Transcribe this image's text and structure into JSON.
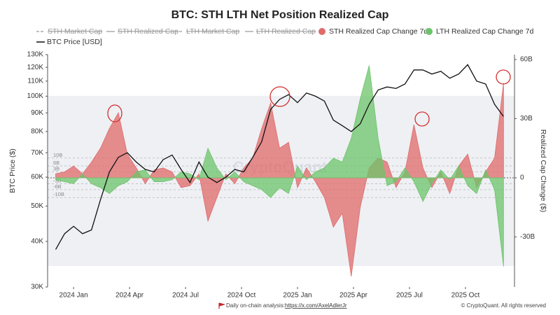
{
  "chart_data": {
    "type": "line",
    "title": "BTC: STH LTH Net Position Realized Cap",
    "y_label": "BTC Price ($)",
    "y2_label": "Realized Cap Change ($)",
    "inactive_legend": [
      "STH Market Cap",
      "STH Realized Cap",
      "LTH Market Cap",
      "LTH Realized Cap"
    ],
    "x": [
      2023.92,
      2023.96,
      2024.0,
      2024.04,
      2024.08,
      2024.12,
      2024.16,
      2024.2,
      2024.24,
      2024.28,
      2024.32,
      2024.36,
      2024.4,
      2024.44,
      2024.48,
      2024.52,
      2024.56,
      2024.6,
      2024.64,
      2024.68,
      2024.72,
      2024.76,
      2024.8,
      2024.84,
      2024.88,
      2024.92,
      2024.96,
      2025.0,
      2025.04,
      2025.08,
      2025.12,
      2025.16,
      2025.2,
      2025.24,
      2025.28,
      2025.32,
      2025.36,
      2025.4,
      2025.44,
      2025.48,
      2025.52,
      2025.56,
      2025.6,
      2025.64,
      2025.68,
      2025.72,
      2025.76,
      2025.8,
      2025.84,
      2025.88,
      2025.92
    ],
    "xlim": [
      2023.884,
      2025.969
    ],
    "xticks": [
      {
        "value": 2024.0,
        "label": "2024 Jan"
      },
      {
        "value": 2024.25,
        "label": "2024 Apr"
      },
      {
        "value": 2024.5,
        "label": "2024 Jul"
      },
      {
        "value": 2024.75,
        "label": "2024 Oct"
      },
      {
        "value": 2025.0,
        "label": "2025 Jan"
      },
      {
        "value": 2025.25,
        "label": "2025 Apr"
      },
      {
        "value": 2025.5,
        "label": "2025 Jul"
      },
      {
        "value": 2025.75,
        "label": "2025 Oct"
      }
    ],
    "ylog": true,
    "ylim": [
      30000,
      130000
    ],
    "yticks": [
      {
        "value": 30000,
        "label": "30K"
      },
      {
        "value": 40000,
        "label": "40K"
      },
      {
        "value": 50000,
        "label": "50K"
      },
      {
        "value": 60000,
        "label": "60K"
      },
      {
        "value": 70000,
        "label": "70K"
      },
      {
        "value": 80000,
        "label": "80K"
      },
      {
        "value": 90000,
        "label": "90K"
      },
      {
        "value": 100000,
        "label": "100K"
      },
      {
        "value": 110000,
        "label": "110K"
      },
      {
        "value": 120000,
        "label": "120K"
      },
      {
        "value": 130000,
        "label": "130K"
      }
    ],
    "y2lim": [
      -55.4,
      62.5
    ],
    "y2ticks": [
      {
        "value": 60,
        "label": "60B"
      },
      {
        "value": 30,
        "label": "30B"
      },
      0,
      {
        "value": -30,
        "label": "-30B"
      }
    ],
    "y2_reference_lines": [
      {
        "value": 10,
        "label": "10B"
      },
      {
        "value": 6,
        "label": "6B"
      },
      {
        "value": 3,
        "label": "3B"
      },
      {
        "value": -3,
        "label": "-3B"
      },
      {
        "value": -6,
        "label": "-6B"
      },
      {
        "value": -10,
        "label": "-10B"
      }
    ],
    "series": [
      {
        "name": "STH Realized Cap Change 7d",
        "type": "area",
        "axis": "y2",
        "color": "#e06a6a",
        "values": [
          2,
          3,
          6,
          2,
          8,
          15,
          25,
          33,
          12,
          5,
          -3,
          4,
          5,
          3,
          -5,
          -4,
          2,
          -22,
          -10,
          2,
          -3,
          5,
          10,
          25,
          38,
          15,
          18,
          -5,
          5,
          -2,
          -10,
          -25,
          -18,
          -50,
          -15,
          5,
          10,
          8,
          -5,
          3,
          27,
          5,
          -5,
          3,
          -8,
          6,
          12,
          -5,
          3,
          10,
          48
        ]
      },
      {
        "name": "LTH Realized Cap Change 7d",
        "type": "area",
        "axis": "y2",
        "color": "#6cc46a",
        "values": [
          -1,
          -2,
          -3,
          2,
          -3,
          -5,
          -8,
          -4,
          -2,
          3,
          4,
          -2,
          -2,
          -1,
          3,
          2,
          -1,
          15,
          5,
          -1,
          3,
          -2,
          -4,
          -6,
          -10,
          -5,
          -8,
          6,
          -1,
          3,
          5,
          10,
          8,
          20,
          40,
          57,
          20,
          -4,
          -2,
          5,
          -2,
          -12,
          -3,
          4,
          -1,
          6,
          -4,
          -8,
          4,
          -6,
          -45
        ]
      },
      {
        "name": "BTC Price [USD]",
        "type": "line",
        "color": "#111111",
        "values": [
          38000,
          42000,
          44000,
          42000,
          43000,
          52000,
          62000,
          68000,
          70000,
          66000,
          63000,
          62000,
          67000,
          69000,
          63000,
          58000,
          66000,
          60000,
          58000,
          60000,
          63000,
          62000,
          68000,
          75000,
          92000,
          98000,
          101000,
          96000,
          102000,
          100000,
          97000,
          86000,
          83000,
          80000,
          84000,
          95000,
          104000,
          106000,
          105000,
          108000,
          118000,
          118000,
          115000,
          117000,
          112000,
          115000,
          122000,
          110000,
          108000,
          95000,
          88000
        ]
      }
    ],
    "watermark": "CryptoQuant",
    "footer_text": "Daily on-chain analysis: ",
    "footer_link": "https://x.com/AxelAdlerJr",
    "copyright": "© CryptoQuant. All rights reserved"
  }
}
